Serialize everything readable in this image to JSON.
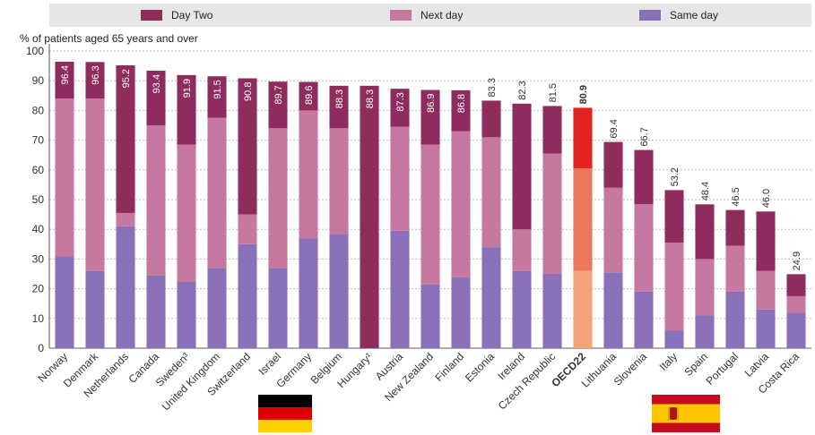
{
  "legend": [
    {
      "label": "Day Two",
      "color": "#8e2c5e"
    },
    {
      "label": "Next day",
      "color": "#c678a0"
    },
    {
      "label": "Same day",
      "color": "#8a70b8"
    }
  ],
  "colors": {
    "day_two": "#8e2c5e",
    "next_day": "#c678a0",
    "same_day": "#8a70b8",
    "oecd_day_two": "#e3231f",
    "oecd_next_day": "#e9795a",
    "oecd_same_day": "#f4a277",
    "grid": "#bdbdbd",
    "value_label_inside": "#ffffff",
    "value_label_outside": "#333333"
  },
  "chart_data": {
    "type": "bar",
    "stacked": true,
    "ylabel": "% of patients aged 65 years and over",
    "ylim": [
      0,
      100
    ],
    "yticks": [
      0,
      10,
      20,
      30,
      40,
      50,
      60,
      70,
      80,
      90,
      100
    ],
    "grid": true,
    "legend_position": "top",
    "categories": [
      "Norway",
      "Denmark",
      "Netherlands",
      "Canada",
      "Sweden³",
      "United Kingdom",
      "Switzerland",
      "Israel",
      "Germany",
      "Belgium",
      "Hungary¹",
      "Austria",
      "New Zealand",
      "Finland",
      "Estonia",
      "Ireland",
      "Czech Republic",
      "OECD22",
      "Lithuania",
      "Slovenia",
      "Italy",
      "Spain",
      "Portugal",
      "Latvia",
      "Costa Rica"
    ],
    "highlight_category": "OECD22",
    "series": [
      {
        "name": "Same day",
        "values": [
          31,
          26,
          41,
          24.5,
          22.5,
          27,
          35,
          27,
          37,
          38.5,
          0,
          39.5,
          21.5,
          24,
          34,
          26,
          25,
          26,
          25.5,
          19,
          6,
          11,
          19,
          13,
          12
        ]
      },
      {
        "name": "Next day",
        "values": [
          53,
          58,
          4.5,
          50.5,
          46,
          50.5,
          10,
          47,
          43,
          35.5,
          0,
          35,
          47,
          49,
          37,
          14,
          40.5,
          34.5,
          28.5,
          29.5,
          29.5,
          19,
          15.5,
          13,
          5.5
        ]
      },
      {
        "name": "Day Two",
        "values": [
          12.4,
          12.3,
          49.7,
          18.4,
          23.4,
          14,
          45.8,
          15.7,
          9.6,
          14.3,
          88.3,
          12.8,
          18.4,
          13.8,
          12.3,
          42.3,
          16,
          20.4,
          15.4,
          18.2,
          17.7,
          18.4,
          12,
          20,
          7.4
        ]
      }
    ],
    "totals": [
      "96.4",
      "96.3",
      "95.2",
      "93.4",
      "91.9",
      "91.5",
      "90.8",
      "89.7",
      "89.6",
      "88.3",
      "88.3",
      "87.3",
      "86.9",
      "86.8",
      "83.3",
      "82.3",
      "81.5",
      "80.9",
      "69.4",
      "66.7",
      "53.2",
      "48.4",
      "46.5",
      "46.0",
      "24.9"
    ]
  },
  "flags": [
    {
      "name": "germany-flag",
      "country": "Germany"
    },
    {
      "name": "spain-flag",
      "country": "Spain"
    }
  ]
}
